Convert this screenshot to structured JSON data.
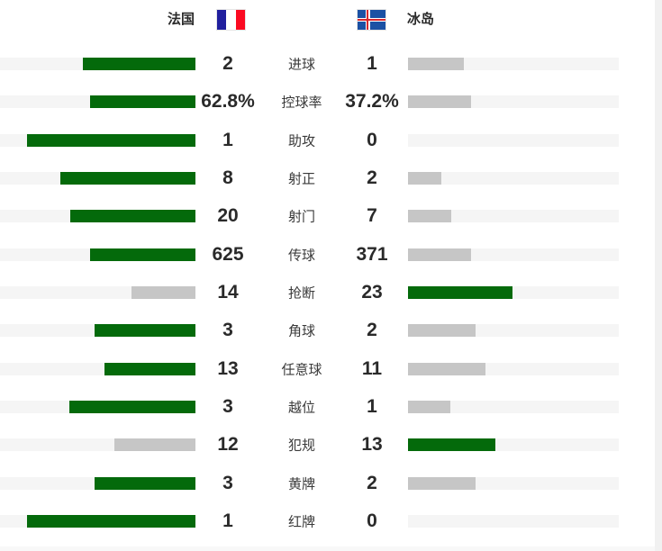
{
  "header": {
    "home": {
      "name": "法国",
      "flag": "france-flag"
    },
    "away": {
      "name": "冰岛",
      "flag": "iceland-flag"
    }
  },
  "colors": {
    "win_bar": "#046a0b",
    "lose_bar": "#c6c6c6",
    "track": "#f5f5f5",
    "value_text": "#2a2a2a",
    "label_text": "#3a3a3a",
    "flag_france": {
      "blue": "#201f9e",
      "white": "#ffffff",
      "red": "#fb0a21"
    },
    "flag_iceland": {
      "blue": "#1b51a4",
      "white": "#ffffff",
      "red": "#d7282d"
    }
  },
  "chart_data": {
    "type": "bar",
    "teams": [
      "法国",
      "冰岛"
    ],
    "legend_note": "winner bar green, loser bar gray, bar width proportional to share of total",
    "rows": [
      {
        "label": "进球",
        "home": "2",
        "away": "1"
      },
      {
        "label": "控球率",
        "home": "62.8%",
        "away": "37.2%"
      },
      {
        "label": "助攻",
        "home": "1",
        "away": "0"
      },
      {
        "label": "射正",
        "home": "8",
        "away": "2"
      },
      {
        "label": "射门",
        "home": "20",
        "away": "7"
      },
      {
        "label": "传球",
        "home": "625",
        "away": "371"
      },
      {
        "label": "抢断",
        "home": "14",
        "away": "23"
      },
      {
        "label": "角球",
        "home": "3",
        "away": "2"
      },
      {
        "label": "任意球",
        "home": "13",
        "away": "11"
      },
      {
        "label": "越位",
        "home": "3",
        "away": "1"
      },
      {
        "label": "犯规",
        "home": "12",
        "away": "13"
      },
      {
        "label": "黄牌",
        "home": "3",
        "away": "2"
      },
      {
        "label": "红牌",
        "home": "1",
        "away": "0"
      }
    ]
  }
}
